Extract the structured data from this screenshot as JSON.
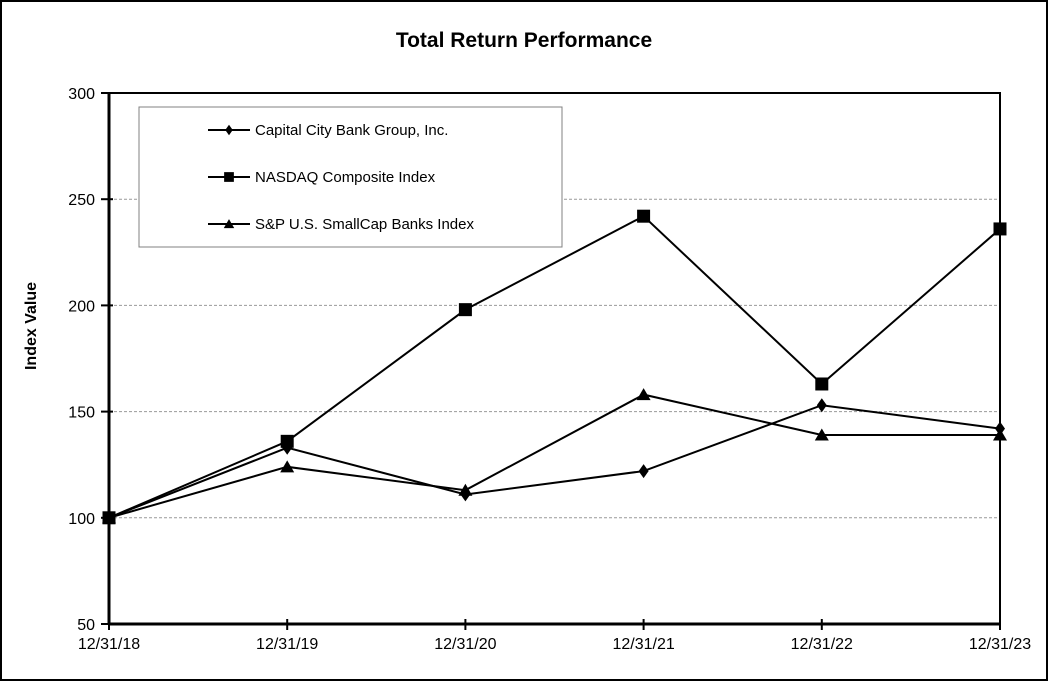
{
  "chart": {
    "title": "Total Return Performance",
    "ylabel": "Index Value"
  },
  "chart_data": {
    "type": "line",
    "title": "Total Return Performance",
    "xlabel": "",
    "ylabel": "Index Value",
    "categories": [
      "12/31/18",
      "12/31/19",
      "12/31/20",
      "12/31/21",
      "12/31/22",
      "12/31/23"
    ],
    "series": [
      {
        "name": "Capital City Bank Group, Inc.",
        "marker": "diamond",
        "values": [
          100,
          133,
          111,
          122,
          153,
          142
        ]
      },
      {
        "name": "NASDAQ Composite Index",
        "marker": "square",
        "values": [
          100,
          136,
          198,
          242,
          163,
          236
        ]
      },
      {
        "name": "S&P U.S. SmallCap Banks Index",
        "marker": "triangle",
        "values": [
          100,
          124,
          113,
          158,
          139,
          139
        ]
      }
    ],
    "ylim": [
      50,
      300
    ],
    "ytick_step": 50,
    "grid": "horizontal-dashed",
    "legend_position": "top-left-inside",
    "colors": {
      "series": "#000000",
      "frame": "#000000",
      "gridline": "#999999",
      "legend_border": "#808080",
      "background": "#ffffff"
    }
  }
}
